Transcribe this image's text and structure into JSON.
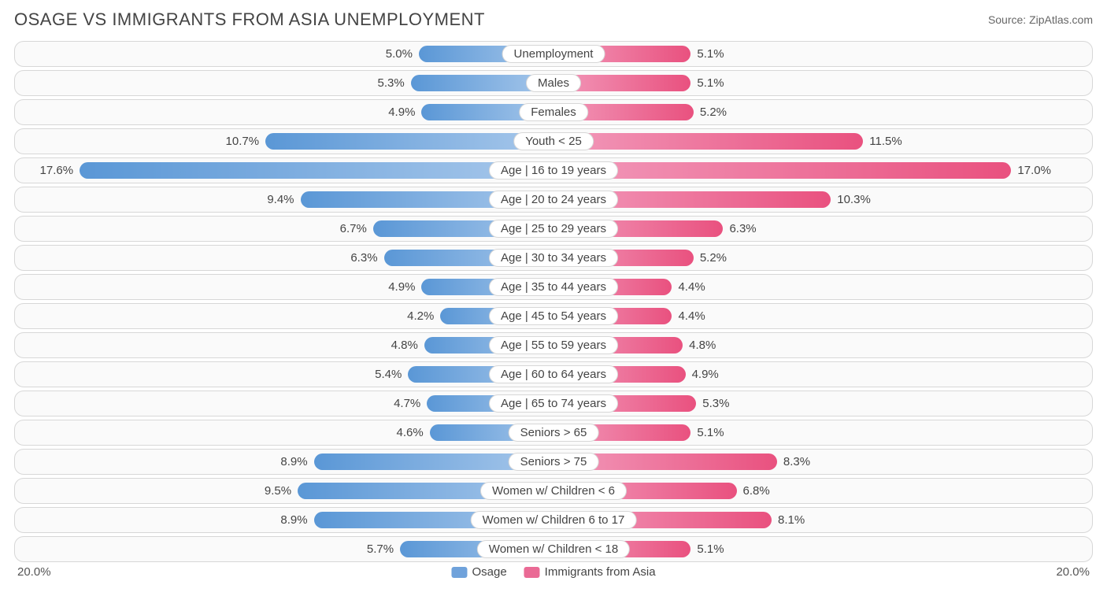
{
  "title": "OSAGE VS IMMIGRANTS FROM ASIA UNEMPLOYMENT",
  "source": "Source: ZipAtlas.com",
  "chart": {
    "type": "diverging-bar",
    "axis_max": 20.0,
    "axis_label": "20.0%",
    "background_color": "#ffffff",
    "row_border_color": "#d7d7d7",
    "row_background": "#fafafa",
    "label_fontsize": 15,
    "title_fontsize": 22,
    "left": {
      "name": "Osage",
      "bar_gradient": [
        "#5a97d6",
        "#a8c8eb"
      ],
      "swatch_color": "#6fa2db"
    },
    "right": {
      "name": "Immigrants from Asia",
      "bar_gradient": [
        "#f29abb",
        "#e9517f"
      ],
      "swatch_color": "#ea6a95"
    },
    "rows": [
      {
        "label": "Unemployment",
        "left_val": 5.0,
        "right_val": 5.1
      },
      {
        "label": "Males",
        "left_val": 5.3,
        "right_val": 5.1
      },
      {
        "label": "Females",
        "left_val": 4.9,
        "right_val": 5.2
      },
      {
        "label": "Youth < 25",
        "left_val": 10.7,
        "right_val": 11.5
      },
      {
        "label": "Age | 16 to 19 years",
        "left_val": 17.6,
        "right_val": 17.0
      },
      {
        "label": "Age | 20 to 24 years",
        "left_val": 9.4,
        "right_val": 10.3
      },
      {
        "label": "Age | 25 to 29 years",
        "left_val": 6.7,
        "right_val": 6.3
      },
      {
        "label": "Age | 30 to 34 years",
        "left_val": 6.3,
        "right_val": 5.2
      },
      {
        "label": "Age | 35 to 44 years",
        "left_val": 4.9,
        "right_val": 4.4
      },
      {
        "label": "Age | 45 to 54 years",
        "left_val": 4.2,
        "right_val": 4.4
      },
      {
        "label": "Age | 55 to 59 years",
        "left_val": 4.8,
        "right_val": 4.8
      },
      {
        "label": "Age | 60 to 64 years",
        "left_val": 5.4,
        "right_val": 4.9
      },
      {
        "label": "Age | 65 to 74 years",
        "left_val": 4.7,
        "right_val": 5.3
      },
      {
        "label": "Seniors > 65",
        "left_val": 4.6,
        "right_val": 5.1
      },
      {
        "label": "Seniors > 75",
        "left_val": 8.9,
        "right_val": 8.3
      },
      {
        "label": "Women w/ Children < 6",
        "left_val": 9.5,
        "right_val": 6.8
      },
      {
        "label": "Women w/ Children 6 to 17",
        "left_val": 8.9,
        "right_val": 8.1
      },
      {
        "label": "Women w/ Children < 18",
        "left_val": 5.7,
        "right_val": 5.1
      }
    ]
  }
}
